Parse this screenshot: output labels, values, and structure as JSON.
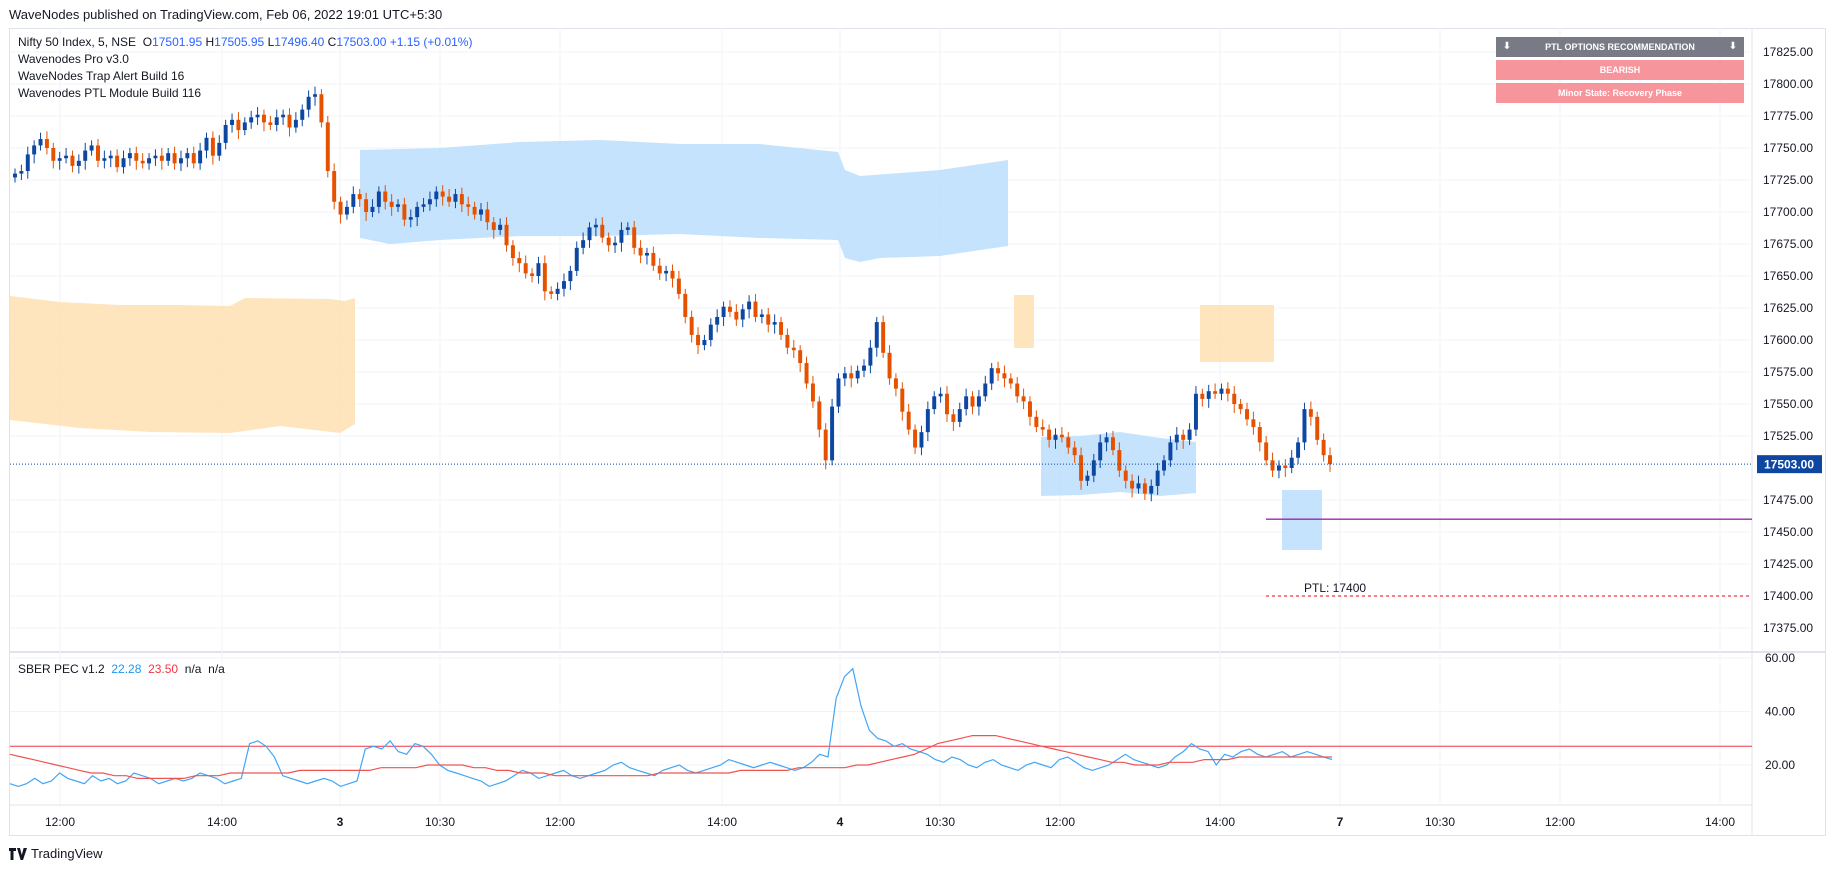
{
  "header": {
    "publish_text": "WaveNodes published on TradingView.com, Feb 06, 2022 19:01 UTC+5:30"
  },
  "legend": {
    "symbol": "Nifty 50 Index, 5, NSE",
    "o_label": "O",
    "o_val": "17501.95",
    "h_label": "H",
    "h_val": "17505.95",
    "l_label": "L",
    "l_val": "17496.40",
    "c_label": "C",
    "c_val": "17503.00",
    "change": "+1.15 (+0.01%)",
    "indicators": [
      "Wavenodes Pro v3.0",
      "WaveNodes Trap Alert Build 16",
      "Wavenodes PTL Module Build 116"
    ]
  },
  "ptl_panel": {
    "header": "PTL OPTIONS RECOMMENDATION",
    "arrow_icon": "down-arrow-icon",
    "signal": "BEARISH",
    "state": "Minor State: Recovery Phase"
  },
  "oscillator_legend": {
    "name": "SBER PEC v1.2",
    "v1": "22.28",
    "v2": "23.50",
    "v3": "n/a",
    "v4": "n/a"
  },
  "footer": {
    "brand": "TradingView"
  },
  "colors": {
    "up": "#0d47a1",
    "down": "#e65100",
    "blue_zone": "#bbdefb",
    "orange_zone": "#ffe0b2",
    "price_tag": "#0d47a1",
    "ptl_line": "#f23645",
    "purple_line": "#9c27b0",
    "osc_blue": "#42a5f5",
    "osc_red": "#ef5350"
  },
  "chart_data": [
    {
      "type": "candlestick",
      "title": "Nifty 50 Index, 5, NSE",
      "ylim": [
        17350,
        17837.5
      ],
      "y_ticks": [
        "17825.00",
        "17800.00",
        "17775.00",
        "17750.00",
        "17725.00",
        "17700.00",
        "17675.00",
        "17650.00",
        "17625.00",
        "17600.00",
        "17575.00",
        "17550.00",
        "17525.00",
        "17475.00",
        "17450.00",
        "17425.00",
        "17400.00",
        "17375.00"
      ],
      "x_ticks": [
        "12:00",
        "14:00",
        "3",
        "10:30",
        "12:00",
        "14:00",
        "4",
        "10:30",
        "12:00",
        "14:00",
        "7",
        "10:30",
        "12:00",
        "14:00"
      ],
      "last_price": "17503.00",
      "ptl_label": "PTL: 17400",
      "ptl_level": 17400,
      "purple_level": 17460,
      "candle_closes": [
        17730,
        17732,
        17745,
        17752,
        17757,
        17750,
        17740,
        17742,
        17744,
        17736,
        17740,
        17748,
        17752,
        17740,
        17742,
        17744,
        17735,
        17742,
        17746,
        17740,
        17738,
        17742,
        17744,
        17740,
        17746,
        17738,
        17742,
        17746,
        17738,
        17748,
        17758,
        17744,
        17754,
        17768,
        17772,
        17764,
        17770,
        17774,
        17776,
        17770,
        17768,
        17774,
        17776,
        17766,
        17772,
        17780,
        17790,
        17792,
        17770,
        17732,
        17708,
        17698,
        17704,
        17714,
        17710,
        17700,
        17704,
        17716,
        17708,
        17704,
        17706,
        17694,
        17696,
        17704,
        17706,
        17710,
        17716,
        17712,
        17708,
        17714,
        17706,
        17704,
        17698,
        17702,
        17692,
        17686,
        17690,
        17674,
        17664,
        17660,
        17652,
        17650,
        17660,
        17638,
        17636,
        17640,
        17646,
        17654,
        17672,
        17678,
        17688,
        17690,
        17680,
        17674,
        17676,
        17686,
        17688,
        17672,
        17666,
        17668,
        17658,
        17652,
        17654,
        17648,
        17636,
        17618,
        17604,
        17596,
        17600,
        17612,
        17618,
        17626,
        17622,
        17616,
        17624,
        17630,
        17618,
        17620,
        17612,
        17614,
        17604,
        17594,
        17592,
        17582,
        17566,
        17552,
        17530,
        17506,
        17548,
        17570,
        17574,
        17570,
        17576,
        17580,
        17594,
        17614,
        17590,
        17570,
        17562,
        17544,
        17530,
        17516,
        17528,
        17546,
        17556,
        17558,
        17542,
        17536,
        17546,
        17556,
        17548,
        17556,
        17566,
        17578,
        17574,
        17570,
        17566,
        17556,
        17552,
        17540,
        17532,
        17530,
        17522,
        17526,
        17524,
        17516,
        17510,
        17490,
        17494,
        17506,
        17520,
        17524,
        17514,
        17498,
        17490,
        17484,
        17488,
        17480,
        17486,
        17498,
        17506,
        17520,
        17526,
        17522,
        17530,
        17558,
        17554,
        17560,
        17558,
        17562,
        17558,
        17550,
        17546,
        17538,
        17532,
        17520,
        17506,
        17498,
        17502,
        17500,
        17508,
        17520,
        17546,
        17540,
        17522,
        17510,
        17503
      ]
    },
    {
      "type": "line",
      "title": "SBER PEC v1.2",
      "ylim": [
        5,
        60
      ],
      "y_ticks": [
        "60.00",
        "40.00",
        "20.00"
      ],
      "level": 27,
      "series": [
        {
          "name": "22.28",
          "values": [
            13,
            12,
            13,
            15,
            13,
            14,
            17,
            15,
            14,
            13,
            16,
            14,
            15,
            13,
            14,
            17,
            16,
            15,
            13,
            14,
            15,
            14,
            15,
            17,
            16,
            15,
            13,
            14,
            15,
            28,
            29,
            27,
            23,
            16,
            15,
            14,
            13,
            14,
            15,
            14,
            12,
            13,
            14,
            26,
            27,
            26,
            29,
            25,
            24,
            28,
            27,
            24,
            20,
            18,
            17,
            16,
            15,
            14,
            12,
            13,
            14,
            16,
            18,
            17,
            15,
            16,
            17,
            18,
            16,
            15,
            16,
            17,
            18,
            20,
            21,
            19,
            18,
            17,
            16,
            18,
            19,
            20,
            18,
            17,
            18,
            19,
            20,
            22,
            21,
            20,
            19,
            20,
            21,
            20,
            19,
            18,
            19,
            21,
            24,
            23,
            45,
            53,
            56,
            42,
            33,
            30,
            29,
            27,
            28,
            26,
            25,
            24,
            22,
            21,
            23,
            22,
            20,
            19,
            21,
            22,
            20,
            19,
            18,
            20,
            21,
            20,
            19,
            22,
            23,
            21,
            19,
            18,
            19,
            20,
            22,
            24,
            22,
            21,
            20,
            19,
            20,
            23,
            25,
            28,
            26,
            25,
            20,
            24,
            23,
            25,
            26,
            24,
            23,
            24,
            25,
            23,
            24,
            25,
            24,
            23,
            22
          ]
        },
        {
          "name": "23.50",
          "values": [
            24,
            23,
            22,
            21,
            20,
            19,
            18,
            17,
            17,
            16,
            16,
            15,
            15,
            15,
            15,
            15,
            16,
            16,
            16,
            17,
            17,
            17,
            17,
            17,
            17,
            18,
            18,
            18,
            18,
            18,
            18,
            18,
            19,
            19,
            19,
            19,
            20,
            20,
            20,
            20,
            19,
            19,
            18,
            18,
            17,
            17,
            17,
            16,
            16,
            16,
            16,
            16,
            16,
            16,
            16,
            16,
            17,
            17,
            17,
            17,
            17,
            17,
            17,
            18,
            18,
            18,
            18,
            18,
            19,
            19,
            19,
            19,
            19,
            20,
            20,
            21,
            22,
            23,
            24,
            26,
            28,
            29,
            30,
            31,
            31,
            31,
            30,
            29,
            28,
            27,
            26,
            25,
            24,
            23,
            22,
            21,
            21,
            20,
            20,
            20,
            21,
            21,
            21,
            22,
            22,
            22,
            23,
            23,
            23,
            23,
            23,
            23,
            23,
            23,
            23
          ]
        }
      ]
    }
  ]
}
